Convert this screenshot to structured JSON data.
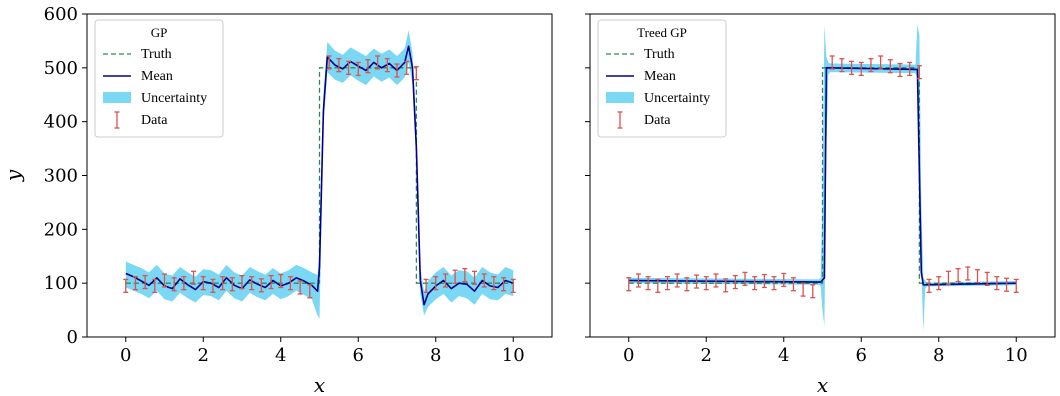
{
  "chart_data": [
    {
      "type": "line",
      "title": "",
      "legend_title": "GP",
      "legend_position": "top-left",
      "xlabel": "x",
      "ylabel": "y",
      "xlim": [
        -1,
        11
      ],
      "ylim": [
        0,
        600
      ],
      "xticks": [
        0,
        2,
        4,
        6,
        8,
        10
      ],
      "yticks": [
        0,
        100,
        200,
        300,
        400,
        500,
        600
      ],
      "grid": false,
      "legend": [
        "Truth",
        "Mean",
        "Uncertainty",
        "Data"
      ],
      "colors": {
        "truth": "#2e8b57",
        "mean": "#00008b",
        "uncertainty": "#7ad8f4",
        "data": "#d9534f"
      },
      "truth": {
        "x": [
          0,
          5,
          5,
          7.5,
          7.5,
          10
        ],
        "y": [
          100,
          100,
          500,
          500,
          100,
          100
        ]
      },
      "mean": {
        "x": [
          0,
          0.2,
          0.4,
          0.6,
          0.8,
          1.0,
          1.2,
          1.4,
          1.6,
          1.8,
          2.0,
          2.2,
          2.4,
          2.6,
          2.8,
          3.0,
          3.2,
          3.4,
          3.6,
          3.8,
          4.0,
          4.2,
          4.4,
          4.6,
          4.8,
          4.95,
          5.0,
          5.1,
          5.2,
          5.4,
          5.6,
          5.8,
          6.0,
          6.2,
          6.4,
          6.6,
          6.8,
          7.0,
          7.2,
          7.3,
          7.4,
          7.5,
          7.6,
          7.7,
          7.8,
          8.0,
          8.2,
          8.4,
          8.6,
          8.8,
          9.0,
          9.2,
          9.4,
          9.6,
          9.8,
          10.0
        ],
        "y": [
          118,
          112,
          104,
          96,
          110,
          95,
          90,
          108,
          97,
          88,
          103,
          100,
          92,
          110,
          96,
          90,
          106,
          98,
          92,
          105,
          95,
          100,
          110,
          104,
          96,
          85,
          130,
          420,
          520,
          505,
          498,
          512,
          503,
          495,
          510,
          500,
          508,
          495,
          510,
          540,
          500,
          350,
          105,
          60,
          80,
          95,
          105,
          90,
          100,
          98,
          85,
          105,
          95,
          92,
          105,
          100
        ]
      },
      "uncertainty": {
        "x": [
          0,
          0.2,
          0.4,
          0.6,
          0.8,
          1.0,
          1.2,
          1.4,
          1.6,
          1.8,
          2.0,
          2.2,
          2.4,
          2.6,
          2.8,
          3.0,
          3.2,
          3.4,
          3.6,
          3.8,
          4.0,
          4.2,
          4.4,
          4.6,
          4.8,
          4.95,
          5.0,
          5.1,
          5.2,
          5.4,
          5.6,
          5.8,
          6.0,
          6.2,
          6.4,
          6.6,
          6.8,
          7.0,
          7.2,
          7.3,
          7.4,
          7.5,
          7.6,
          7.7,
          7.8,
          8.0,
          8.2,
          8.4,
          8.6,
          8.8,
          9.0,
          9.2,
          9.4,
          9.6,
          9.8,
          10.0
        ],
        "lower": [
          92,
          86,
          80,
          72,
          86,
          70,
          66,
          82,
          72,
          64,
          78,
          76,
          68,
          86,
          72,
          66,
          82,
          74,
          68,
          80,
          70,
          76,
          86,
          78,
          70,
          40,
          34,
          390,
          492,
          478,
          472,
          486,
          476,
          468,
          484,
          474,
          482,
          468,
          482,
          510,
          470,
          320,
          80,
          40,
          56,
          70,
          80,
          64,
          76,
          72,
          60,
          80,
          70,
          68,
          80,
          76
        ],
        "upper": [
          140,
          134,
          128,
          120,
          134,
          118,
          114,
          130,
          120,
          112,
          126,
          124,
          116,
          134,
          120,
          114,
          130,
          122,
          116,
          128,
          118,
          124,
          134,
          128,
          120,
          115,
          160,
          450,
          548,
          532,
          524,
          538,
          530,
          522,
          536,
          526,
          534,
          522,
          536,
          570,
          528,
          380,
          130,
          84,
          104,
          120,
          130,
          114,
          124,
          122,
          110,
          130,
          120,
          116,
          130,
          124
        ]
      },
      "data": {
        "x": [
          0,
          0.25,
          0.5,
          0.75,
          1.0,
          1.25,
          1.5,
          1.75,
          2.0,
          2.25,
          2.5,
          2.75,
          3.0,
          3.25,
          3.5,
          3.75,
          4.0,
          4.25,
          4.5,
          4.75,
          5.25,
          5.5,
          5.75,
          6.0,
          6.25,
          6.5,
          6.75,
          7.0,
          7.25,
          7.5,
          7.75,
          8.0,
          8.25,
          8.5,
          8.75,
          9.0,
          9.25,
          9.5,
          9.75,
          10.0
        ],
        "y": [
          95,
          100,
          102,
          95,
          105,
          98,
          100,
          110,
          100,
          95,
          100,
          98,
          102,
          100,
          96,
          102,
          104,
          100,
          92,
          85,
          510,
          505,
          500,
          498,
          503,
          510,
          505,
          495,
          500,
          490,
          95,
          100,
          105,
          112,
          115,
          110,
          105,
          100,
          98,
          95
        ],
        "err": [
          12,
          12,
          12,
          12,
          12,
          12,
          12,
          12,
          12,
          12,
          12,
          12,
          12,
          12,
          12,
          12,
          12,
          12,
          12,
          12,
          12,
          12,
          12,
          12,
          12,
          12,
          12,
          12,
          12,
          12,
          12,
          12,
          12,
          12,
          12,
          12,
          12,
          12,
          12,
          12
        ]
      }
    },
    {
      "type": "line",
      "title": "",
      "legend_title": "Treed GP",
      "legend_position": "top-left",
      "xlabel": "x",
      "ylabel": "",
      "xlim": [
        -1,
        11
      ],
      "ylim": [
        0,
        600
      ],
      "xticks": [
        0,
        2,
        4,
        6,
        8,
        10
      ],
      "yticks": [
        0,
        100,
        200,
        300,
        400,
        500,
        600
      ],
      "grid": false,
      "legend": [
        "Truth",
        "Mean",
        "Uncertainty",
        "Data"
      ],
      "colors": {
        "truth": "#2e8b57",
        "mean": "#00008b",
        "uncertainty": "#7ad8f4",
        "data": "#d9534f"
      },
      "truth": {
        "x": [
          0,
          5,
          5,
          7.5,
          7.5,
          10
        ],
        "y": [
          100,
          100,
          500,
          500,
          100,
          100
        ]
      },
      "mean": {
        "x": [
          0,
          4.95,
          5.05,
          5.1,
          7.45,
          7.55,
          7.6,
          10
        ],
        "y": [
          105,
          102,
          110,
          500,
          497,
          120,
          97,
          100
        ]
      },
      "uncertainty": {
        "x": [
          0,
          4.9,
          4.95,
          5.0,
          5.05,
          5.1,
          5.15,
          5.2,
          7.4,
          7.45,
          7.5,
          7.55,
          7.6,
          7.65,
          7.7,
          10
        ],
        "lower": [
          100,
          97,
          95,
          50,
          20,
          350,
          488,
          492,
          490,
          480,
          400,
          130,
          10,
          90,
          94,
          96
        ],
        "upper": [
          110,
          107,
          109,
          250,
          580,
          520,
          510,
          508,
          506,
          580,
          560,
          250,
          110,
          105,
          101,
          104
        ]
      },
      "data": {
        "x": [
          0,
          0.25,
          0.5,
          0.75,
          1.0,
          1.25,
          1.5,
          1.75,
          2.0,
          2.25,
          2.5,
          2.75,
          3.0,
          3.25,
          3.5,
          3.75,
          4.0,
          4.25,
          4.5,
          4.75,
          5.25,
          5.5,
          5.75,
          6.0,
          6.25,
          6.5,
          6.75,
          7.0,
          7.25,
          7.5,
          7.75,
          8.0,
          8.25,
          8.5,
          8.75,
          9.0,
          9.25,
          9.5,
          9.75,
          10.0
        ],
        "y": [
          98,
          105,
          100,
          95,
          100,
          105,
          98,
          103,
          100,
          105,
          96,
          102,
          108,
          100,
          104,
          100,
          106,
          98,
          88,
          85,
          510,
          505,
          500,
          498,
          505,
          510,
          503,
          496,
          498,
          492,
          95,
          100,
          110,
          115,
          118,
          113,
          108,
          100,
          97,
          95
        ],
        "err": [
          12,
          12,
          12,
          12,
          12,
          12,
          12,
          12,
          12,
          12,
          12,
          12,
          12,
          12,
          12,
          12,
          12,
          12,
          12,
          12,
          12,
          12,
          12,
          12,
          12,
          12,
          12,
          12,
          12,
          12,
          12,
          12,
          12,
          12,
          12,
          12,
          12,
          12,
          12,
          12
        ]
      }
    }
  ]
}
